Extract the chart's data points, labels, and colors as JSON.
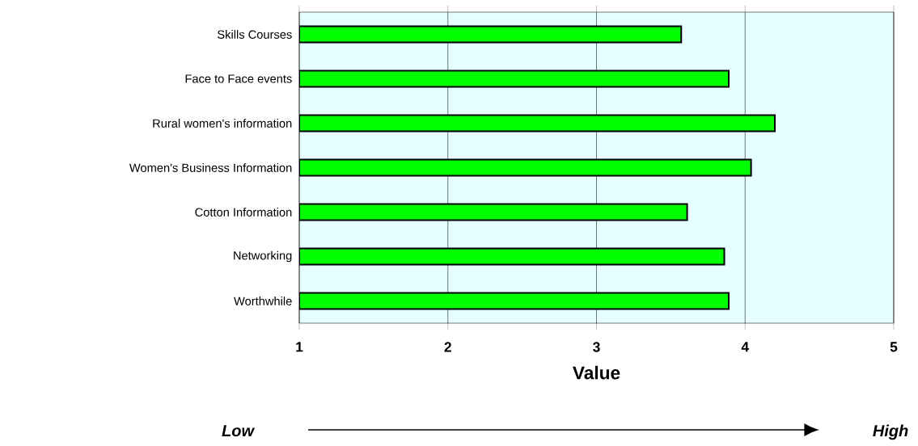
{
  "chart_data": {
    "type": "bar",
    "orientation": "horizontal",
    "xlabel": "Value",
    "categories": [
      "Skills Courses",
      "Face to Face events",
      "Rural women's information",
      "Women's Business Information",
      "Cotton Information",
      "Networking",
      "Worthwhile"
    ],
    "values": [
      3.57,
      3.89,
      4.2,
      4.04,
      3.61,
      3.86,
      3.89
    ],
    "color": "#00ff00",
    "xlim": [
      1,
      5
    ],
    "xticks": [
      1,
      2,
      3,
      4,
      5
    ],
    "grid": "x",
    "annotations": [
      "Low",
      "High"
    ]
  }
}
